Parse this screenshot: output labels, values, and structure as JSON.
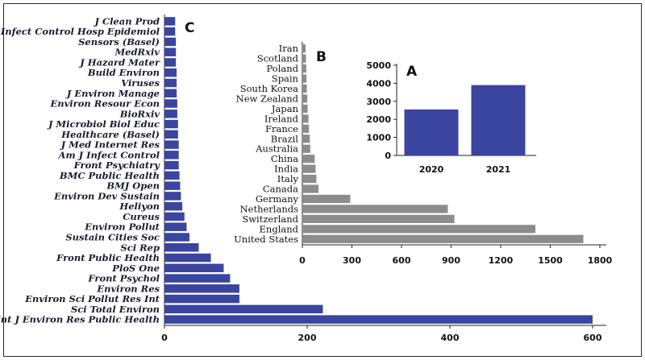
{
  "chart_data": [
    {
      "panel": "C",
      "type": "bar",
      "orientation": "horizontal",
      "categories": [
        "J Clean Prod",
        "Infect Control Hosp Epidemiol",
        "Sensors (Basel)",
        "MedRxiv",
        "J Hazard Mater",
        "Build Environ",
        "Viruses",
        "J Environ Manage",
        "Environ Resour Econ",
        "BioRxiv",
        "J Microbiol Biol Educ",
        "Healthcare (Basel)",
        "J Med Internet Res",
        "Am J Infect Control",
        "Front Psychiatry",
        "BMC Public Health",
        "BMJ Open",
        "Environ Dev Sustain",
        "Heliyon",
        "Cureus",
        "Environ Pollut",
        "Sustain Cities Soc",
        "Sci Rep",
        "Front Public Health",
        "PloS One",
        "Front Psychol",
        "Environ Res",
        "Environ Sci Pollut Res Int",
        "Sci Total Environ",
        "Int J Environ Res Public Health"
      ],
      "values": [
        15,
        15,
        16,
        16,
        16,
        17,
        17,
        17,
        18,
        18,
        19,
        19,
        20,
        20,
        20,
        21,
        22,
        23,
        25,
        28,
        31,
        35,
        48,
        65,
        83,
        92,
        105,
        105,
        222,
        600
      ],
      "xticks": [
        "0",
        "200",
        "400",
        "600"
      ],
      "xlim": [
        0,
        620
      ],
      "color": "#3a45a0",
      "grid": false
    },
    {
      "panel": "B",
      "type": "bar",
      "orientation": "horizontal",
      "categories": [
        "Iran",
        "Scotland",
        "Poland",
        "Spain",
        "South Korea",
        "New Zealand",
        "Japan",
        "Ireland",
        "France",
        "Brazil",
        "Australia",
        "China",
        "India",
        "Italy",
        "Canada",
        "Germany",
        "Netherlands",
        "Switzerland",
        "England",
        "United States"
      ],
      "values": [
        20,
        22,
        24,
        25,
        27,
        30,
        32,
        37,
        40,
        45,
        48,
        75,
        80,
        85,
        98,
        290,
        880,
        920,
        1410,
        1700
      ],
      "xticks": [
        "0",
        "300",
        "600",
        "900",
        "1200",
        "1500",
        "1800"
      ],
      "xlim": [
        0,
        1800
      ],
      "color": "#8c8c8c",
      "grid": false
    },
    {
      "panel": "A",
      "type": "bar",
      "orientation": "vertical",
      "categories": [
        "2020",
        "2021"
      ],
      "values": [
        2550,
        3900
      ],
      "yticks": [
        "0",
        "1000",
        "2000",
        "3000",
        "4000",
        "5000"
      ],
      "ylim": [
        0,
        5000
      ],
      "color": "#3a45a0",
      "grid": false
    }
  ]
}
